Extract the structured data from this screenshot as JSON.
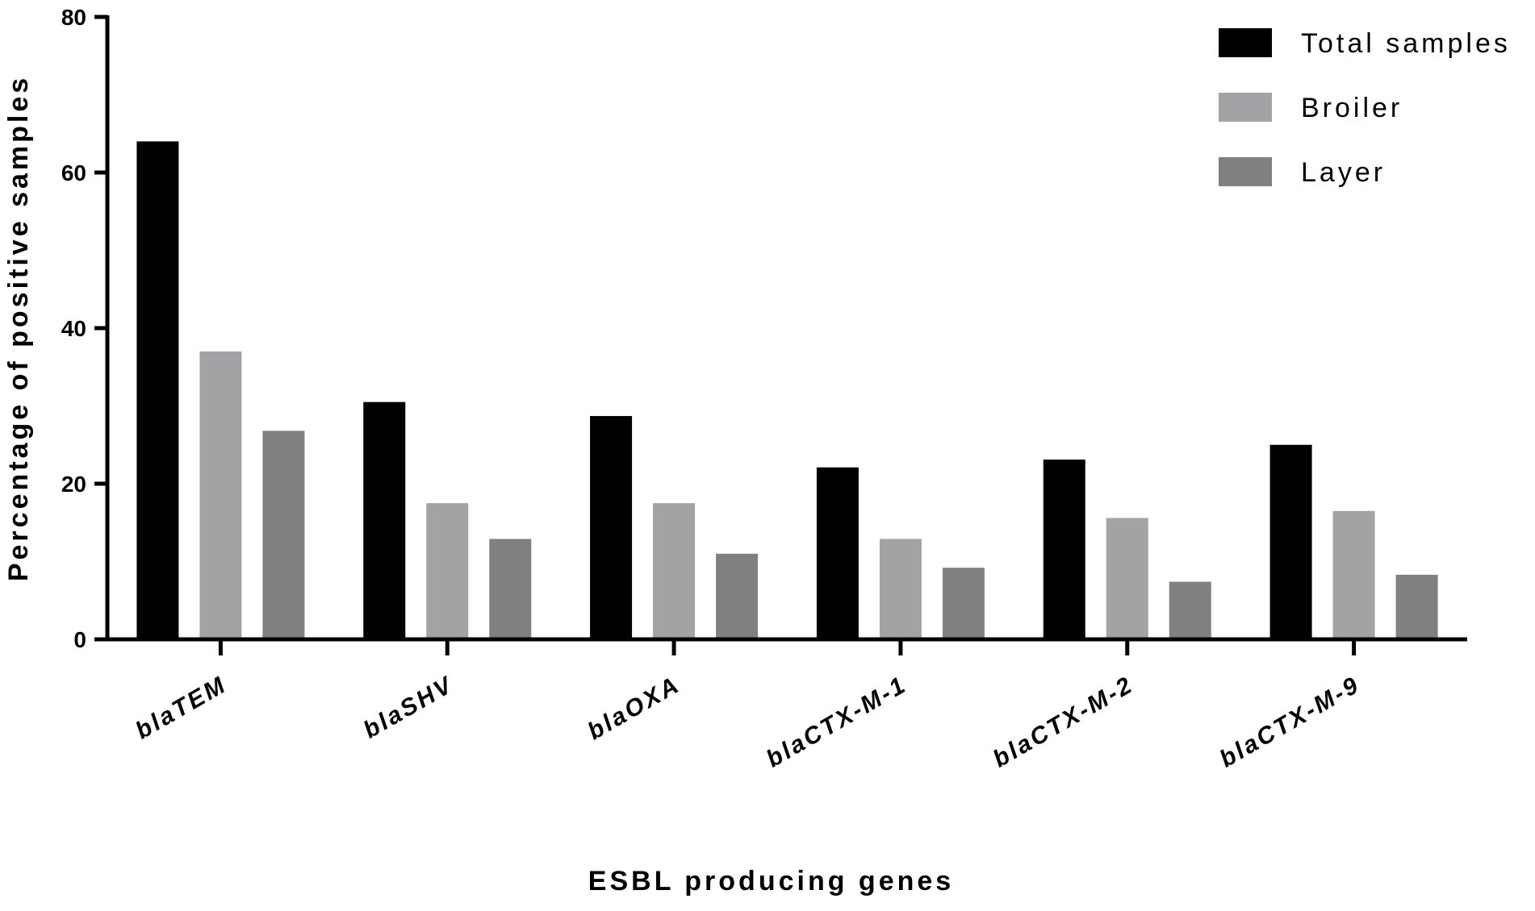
{
  "chart_data": {
    "type": "bar",
    "title": "",
    "xlabel": "ESBL producing genes",
    "ylabel": "Percentage of positive samples",
    "ylim": [
      0,
      80
    ],
    "yticks": [
      0,
      20,
      40,
      60,
      80
    ],
    "categories": [
      {
        "prefix": "bla",
        "suffix": "TEM"
      },
      {
        "prefix": "bla",
        "suffix": "SHV"
      },
      {
        "prefix": "bla",
        "suffix": "OXA"
      },
      {
        "prefix": "bla",
        "suffix": "CTX-M-1"
      },
      {
        "prefix": "bla",
        "suffix": "CTX-M-2"
      },
      {
        "prefix": "bla",
        "suffix": "CTX-M-9"
      }
    ],
    "series": [
      {
        "name": "Total samples",
        "color": "#000000",
        "values": [
          64,
          30.5,
          28.7,
          22.1,
          23.1,
          25.0
        ]
      },
      {
        "name": "Broiler",
        "color": "#a3a3a6",
        "values": [
          37,
          17.5,
          17.5,
          12.9,
          15.6,
          16.5
        ]
      },
      {
        "name": "Layer",
        "color": "#808080",
        "values": [
          26.8,
          12.9,
          11.0,
          9.2,
          7.4,
          8.3
        ]
      }
    ],
    "grid": false,
    "legend_position": "top-right"
  }
}
